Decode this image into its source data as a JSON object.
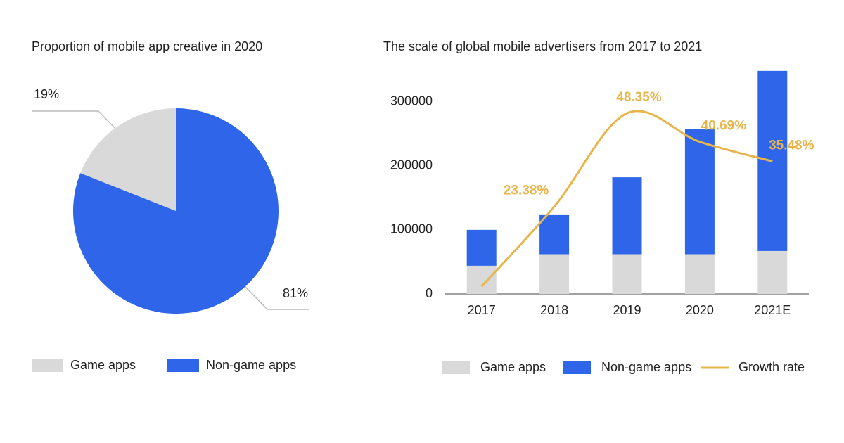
{
  "chart_data": [
    {
      "type": "pie",
      "title": "Proportion of mobile app creative in 2020",
      "categories": [
        "Game apps",
        "Non-game apps"
      ],
      "values": [
        19,
        81
      ],
      "value_labels": [
        "19%",
        "81%"
      ],
      "colors": [
        "#d9d9d9",
        "#2f65e8"
      ]
    },
    {
      "type": "bar",
      "title": "The scale of global mobile advertisers from 2017 to 2021",
      "stacked": true,
      "categories": [
        "2017",
        "2018",
        "2019",
        "2020",
        "2021E"
      ],
      "series": [
        {
          "name": "Game apps",
          "color": "#d9d9d9",
          "values": [
            44000,
            62000,
            62000,
            62000,
            67000
          ]
        },
        {
          "name": "Non-game apps",
          "color": "#2f65e8",
          "values": [
            56000,
            61000,
            120000,
            195000,
            281000
          ]
        },
        {
          "name": "Growth rate",
          "type": "line",
          "axis": "y2",
          "color": "#e8b54a",
          "values": [
            2,
            23.38,
            48.35,
            40.69,
            35.48
          ],
          "value_labels": [
            null,
            "23.38%",
            "48.35%",
            "40.69%",
            "35.48%"
          ]
        }
      ],
      "ylim": [
        0,
        350000
      ],
      "yticks": [
        0,
        100000,
        200000,
        300000
      ],
      "y2lim": [
        0,
        60
      ]
    }
  ]
}
